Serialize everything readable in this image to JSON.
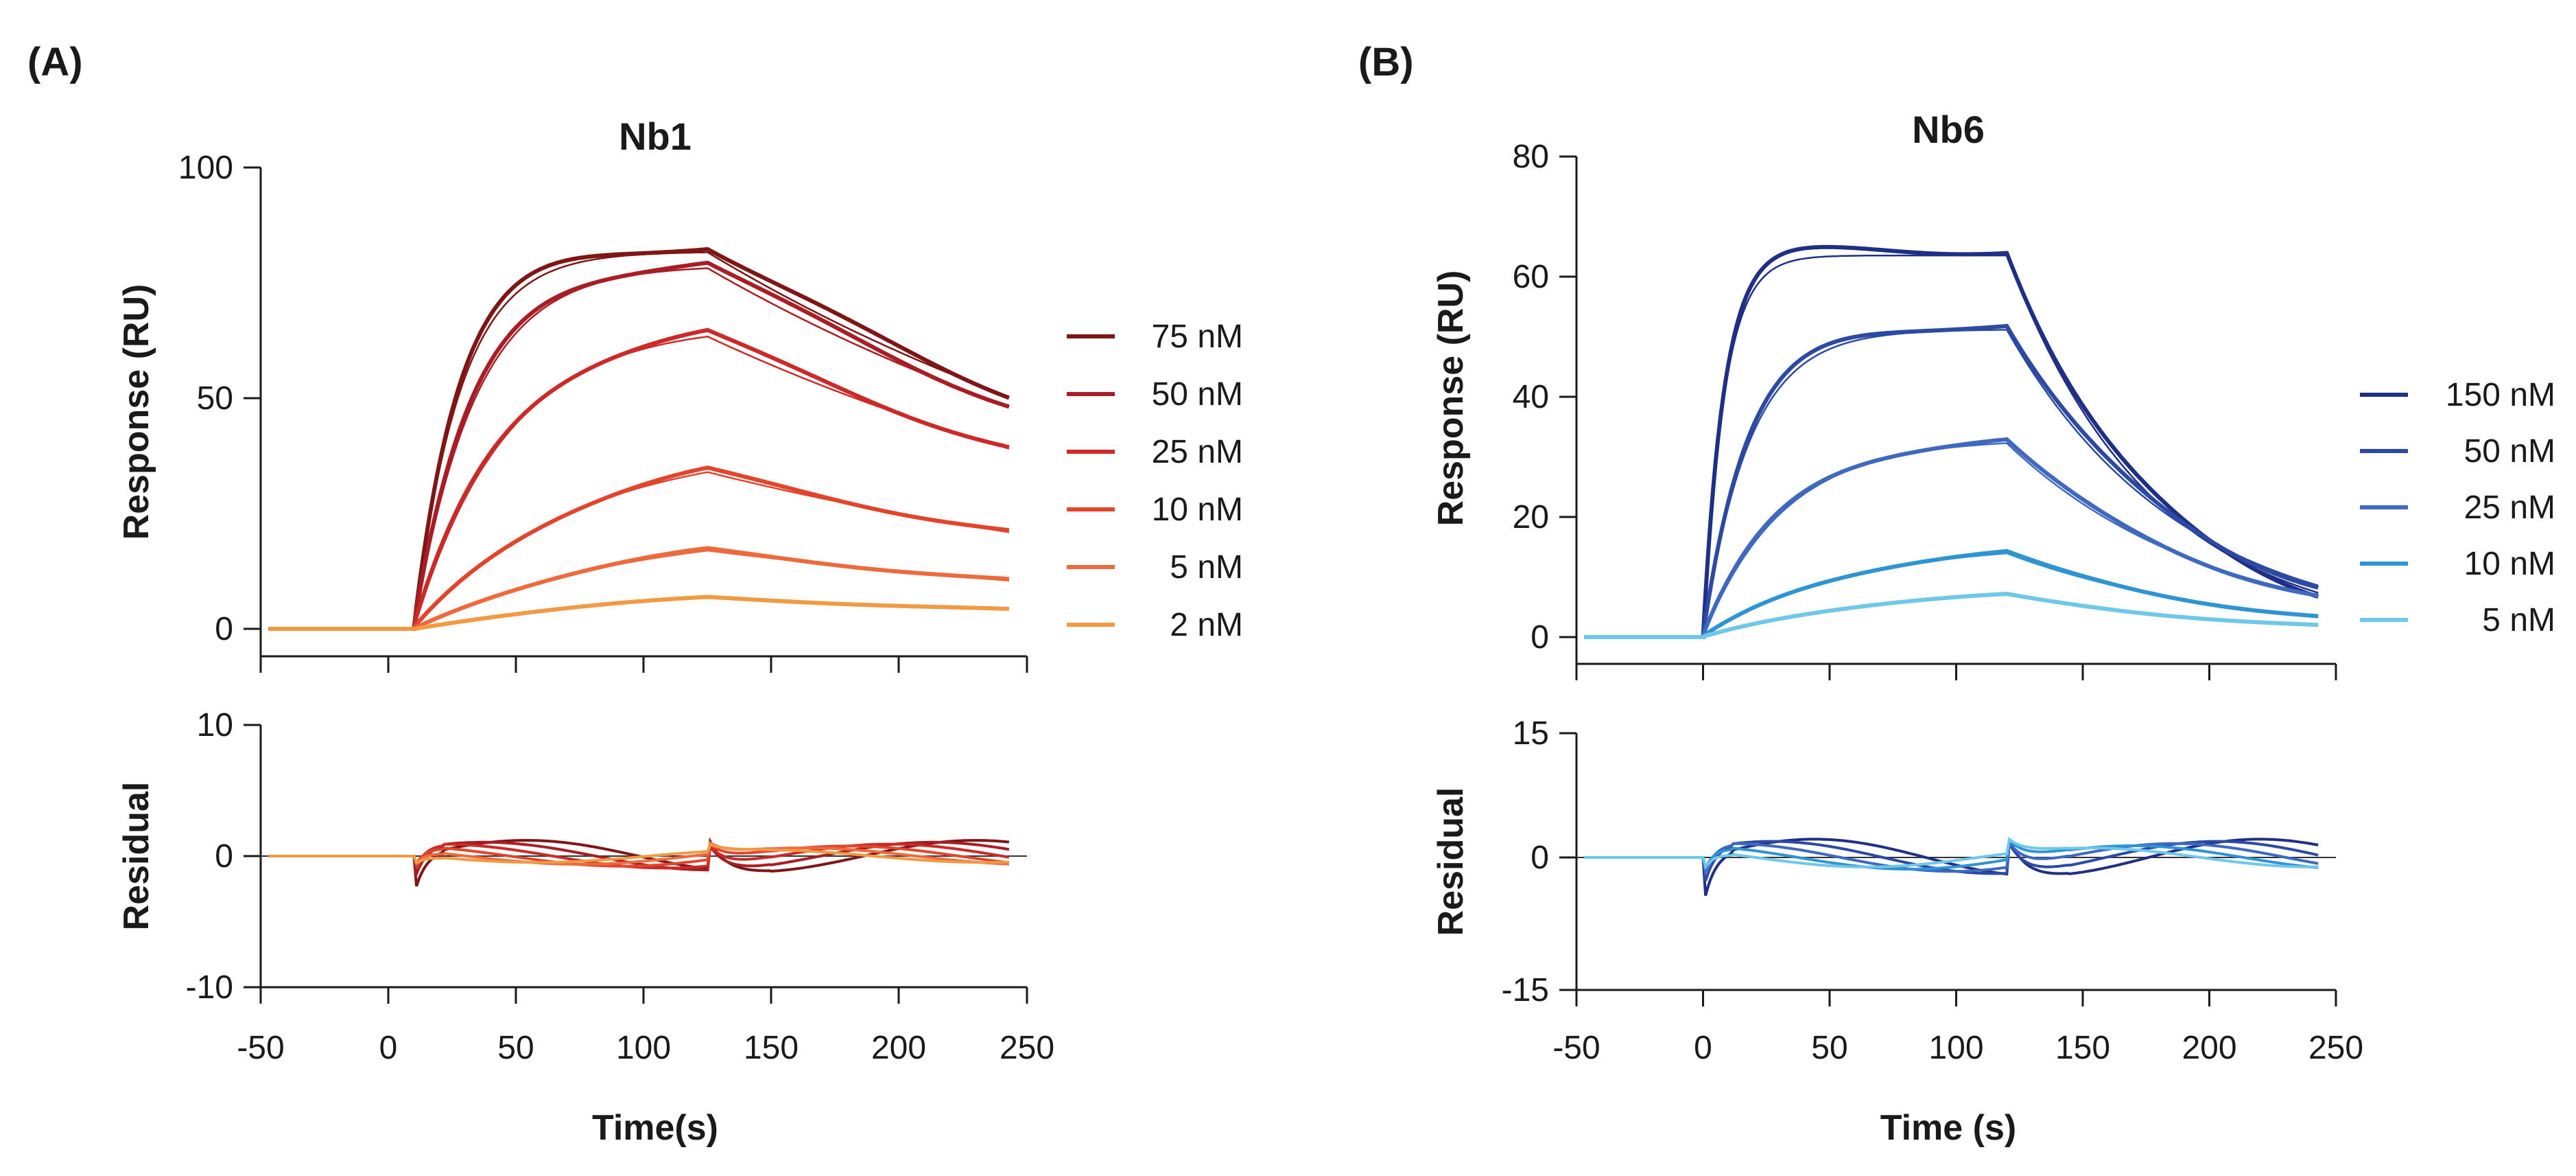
{
  "figure": {
    "panels": [
      "(A)",
      "(B)"
    ]
  },
  "chart_data": [
    {
      "type": "line",
      "panel": "(A)",
      "title": "Nb1",
      "xlabel": "Time(s)",
      "xlim": [
        -50,
        250
      ],
      "xticks": [
        "-50",
        "0",
        "50",
        "100",
        "150",
        "200",
        "250"
      ],
      "top": {
        "ylabel": "Response (RU)",
        "ylim": [
          -5,
          100
        ],
        "yticks": [
          "0",
          "50",
          "100"
        ],
        "association_start": 10,
        "dissociation_start": 125,
        "end": 243,
        "series": [
          {
            "name": "75 nM",
            "color": "#7f1515",
            "plateau": 83,
            "kon_obs": 0.055,
            "koff": 0.0041
          },
          {
            "name": "50 nM",
            "color": "#a91d24",
            "plateau": 80,
            "kon_obs": 0.042,
            "koff": 0.0041
          },
          {
            "name": "25 nM",
            "color": "#cc2a28",
            "plateau": 67,
            "kon_obs": 0.028,
            "koff": 0.0041
          },
          {
            "name": "10 nM",
            "color": "#e2452c",
            "plateau": 41,
            "kon_obs": 0.016,
            "koff": 0.0041
          },
          {
            "name": "5 nM",
            "color": "#ee6a3d",
            "plateau": 23,
            "kon_obs": 0.012,
            "koff": 0.0041
          },
          {
            "name": "2 nM",
            "color": "#f29a43",
            "plateau": 10,
            "kon_obs": 0.01,
            "koff": 0.0041
          }
        ]
      },
      "bottom": {
        "ylabel": "Residual",
        "ylim": [
          -10,
          10
        ],
        "yticks": [
          "-10",
          "0",
          "10"
        ]
      }
    },
    {
      "type": "line",
      "panel": "(B)",
      "title": "Nb6",
      "xlabel": "Time (s)",
      "xlim": [
        -50,
        250
      ],
      "xticks": [
        "-50",
        "0",
        "50",
        "100",
        "150",
        "200",
        "250"
      ],
      "top": {
        "ylabel": "Response (RU)",
        "ylim": [
          -5,
          80
        ],
        "yticks": [
          "0",
          "20",
          "40",
          "60",
          "80"
        ],
        "association_start": 0,
        "dissociation_start": 120,
        "end": 243,
        "series": [
          {
            "name": "150 nM",
            "color": "#1f2f86",
            "plateau": 64.5,
            "kon_obs": 0.12,
            "koff": 0.0175
          },
          {
            "name": "50 nM",
            "color": "#2c4aa4",
            "plateau": 52,
            "kon_obs": 0.055,
            "koff": 0.0145
          },
          {
            "name": "25 nM",
            "color": "#3f69c0",
            "plateau": 33.5,
            "kon_obs": 0.032,
            "koff": 0.0125
          },
          {
            "name": "10 nM",
            "color": "#2f94d3",
            "plateau": 16,
            "kon_obs": 0.018,
            "koff": 0.0115
          },
          {
            "name": "5 nM",
            "color": "#6fc7ea",
            "plateau": 8.5,
            "kon_obs": 0.015,
            "koff": 0.0105
          }
        ]
      },
      "bottom": {
        "ylabel": "Residual",
        "ylim": [
          -15,
          15
        ],
        "yticks": [
          "-15",
          "0",
          "15"
        ]
      }
    }
  ]
}
